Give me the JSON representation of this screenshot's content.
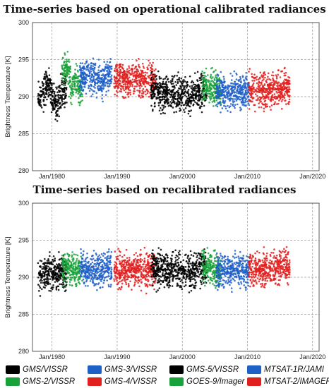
{
  "panels": [
    {
      "title": "Time-series based on operational calibrated radiances"
    },
    {
      "title": "Time-series based on recalibrated radiances"
    }
  ],
  "legend": [
    {
      "label": "GMS/VISSR",
      "color": "#000000"
    },
    {
      "label": "GMS-3/VISSR",
      "color": "#1f5fc8"
    },
    {
      "label": "GMS-5/VISSR",
      "color": "#000000"
    },
    {
      "label": "MTSAT-1R/JAMI",
      "color": "#1f5fc8"
    },
    {
      "label": "GMS-2/VISSR",
      "color": "#1aa23a"
    },
    {
      "label": "GMS-4/VISSR",
      "color": "#e0201f"
    },
    {
      "label": "GOES-9/Imager",
      "color": "#1aa23a"
    },
    {
      "label": "MTSAT-2/IMAGER",
      "color": "#e0201f"
    }
  ],
  "chart_data": [
    {
      "type": "scatter",
      "title": "Time-series based on operational calibrated radiances",
      "xlabel": "",
      "ylabel": "Brightness Temperature [K]",
      "ylim": [
        280,
        300
      ],
      "y_ticks": [
        280,
        285,
        290,
        295,
        300
      ],
      "xlim": [
        "1977-01",
        "2021-01"
      ],
      "x_ticks": [
        "Jan/1980",
        "Jan/1990",
        "Jan/2000",
        "Jan/2010",
        "Jan/2020"
      ],
      "grid": true,
      "series": [
        {
          "name": "GMS/VISSR",
          "color": "#000000",
          "x": [
            "1978-04",
            "1979-06",
            "1980-08",
            "1981-10"
          ],
          "y": [
            290.0,
            291.5,
            288.8,
            291.0
          ]
        },
        {
          "name": "GMS-2/VISSR",
          "color": "#1aa23a",
          "x": [
            "1981-12",
            "1982-06",
            "1983-01",
            "1983-08",
            "1984-03"
          ],
          "y": [
            293.5,
            294.0,
            291.0,
            292.5,
            291.0
          ]
        },
        {
          "name": "GMS-3/VISSR",
          "color": "#1f5fc8",
          "x": [
            "1984-09",
            "1985-09",
            "1986-09",
            "1987-09",
            "1988-09"
          ],
          "y": [
            292.5,
            292.8,
            293.0,
            292.0,
            293.0
          ]
        },
        {
          "name": "GMS-4/VISSR",
          "color": "#e0201f",
          "x": [
            "1989-12",
            "1991-06",
            "1992-12",
            "1994-06",
            "1995-06"
          ],
          "y": [
            292.5,
            292.0,
            292.5,
            292.0,
            292.3
          ]
        },
        {
          "name": "GMS-5/VISSR",
          "color": "#000000",
          "x": [
            "1995-08",
            "1997-06",
            "1999-06",
            "2001-06",
            "2003-04"
          ],
          "y": [
            290.8,
            290.5,
            290.5,
            290.0,
            290.8
          ]
        },
        {
          "name": "GOES-9/Imager",
          "color": "#1aa23a",
          "x": [
            "2003-06",
            "2004-06",
            "2005-06"
          ],
          "y": [
            291.3,
            291.0,
            290.8
          ]
        },
        {
          "name": "MTSAT-1R/JAMI",
          "color": "#1f5fc8",
          "x": [
            "2005-08",
            "2006-12",
            "2008-06",
            "2009-10"
          ],
          "y": [
            290.8,
            290.5,
            290.8,
            290.6
          ]
        },
        {
          "name": "MTSAT-2/IMAGER",
          "color": "#e0201f",
          "x": [
            "2010-08",
            "2012-06",
            "2014-06",
            "2016-01"
          ],
          "y": [
            291.0,
            290.8,
            291.0,
            291.2
          ]
        }
      ]
    },
    {
      "type": "scatter",
      "title": "Time-series based on recalibrated radiances",
      "xlabel": "",
      "ylabel": "Brightness Temperature [K]",
      "ylim": [
        280,
        300
      ],
      "y_ticks": [
        280,
        285,
        290,
        295,
        300
      ],
      "xlim": [
        "1977-01",
        "2021-01"
      ],
      "x_ticks": [
        "Jan/1980",
        "Jan/1990",
        "Jan/2000",
        "Jan/2010",
        "Jan/2020"
      ],
      "grid": true,
      "series": [
        {
          "name": "GMS/VISSR",
          "color": "#000000",
          "x": [
            "1978-04",
            "1979-06",
            "1980-08",
            "1981-10"
          ],
          "y": [
            290.3,
            290.8,
            290.5,
            290.8
          ]
        },
        {
          "name": "GMS-2/VISSR",
          "color": "#1aa23a",
          "x": [
            "1981-12",
            "1982-06",
            "1983-01",
            "1983-08",
            "1984-03"
          ],
          "y": [
            291.0,
            291.3,
            290.8,
            291.0,
            290.8
          ]
        },
        {
          "name": "GMS-3/VISSR",
          "color": "#1f5fc8",
          "x": [
            "1984-09",
            "1985-09",
            "1986-09",
            "1987-09",
            "1988-09"
          ],
          "y": [
            291.2,
            291.0,
            290.8,
            291.0,
            291.2
          ]
        },
        {
          "name": "GMS-4/VISSR",
          "color": "#e0201f",
          "x": [
            "1989-12",
            "1991-06",
            "1992-12",
            "1994-06",
            "1995-06"
          ],
          "y": [
            291.0,
            290.8,
            291.0,
            290.8,
            291.0
          ]
        },
        {
          "name": "GMS-5/VISSR",
          "color": "#000000",
          "x": [
            "1995-08",
            "1997-06",
            "1999-06",
            "2001-06",
            "2003-04"
          ],
          "y": [
            291.2,
            291.0,
            291.0,
            290.8,
            291.5
          ]
        },
        {
          "name": "GOES-9/Imager",
          "color": "#1aa23a",
          "x": [
            "2003-06",
            "2004-06",
            "2005-06"
          ],
          "y": [
            291.5,
            291.2,
            290.8
          ]
        },
        {
          "name": "MTSAT-1R/JAMI",
          "color": "#1f5fc8",
          "x": [
            "2005-08",
            "2006-12",
            "2008-06",
            "2009-10"
          ],
          "y": [
            291.0,
            290.8,
            291.0,
            290.9
          ]
        },
        {
          "name": "MTSAT-2/IMAGER",
          "color": "#e0201f",
          "x": [
            "2010-08",
            "2012-06",
            "2014-06",
            "2016-01"
          ],
          "y": [
            291.0,
            291.0,
            291.2,
            291.3
          ]
        }
      ]
    }
  ]
}
